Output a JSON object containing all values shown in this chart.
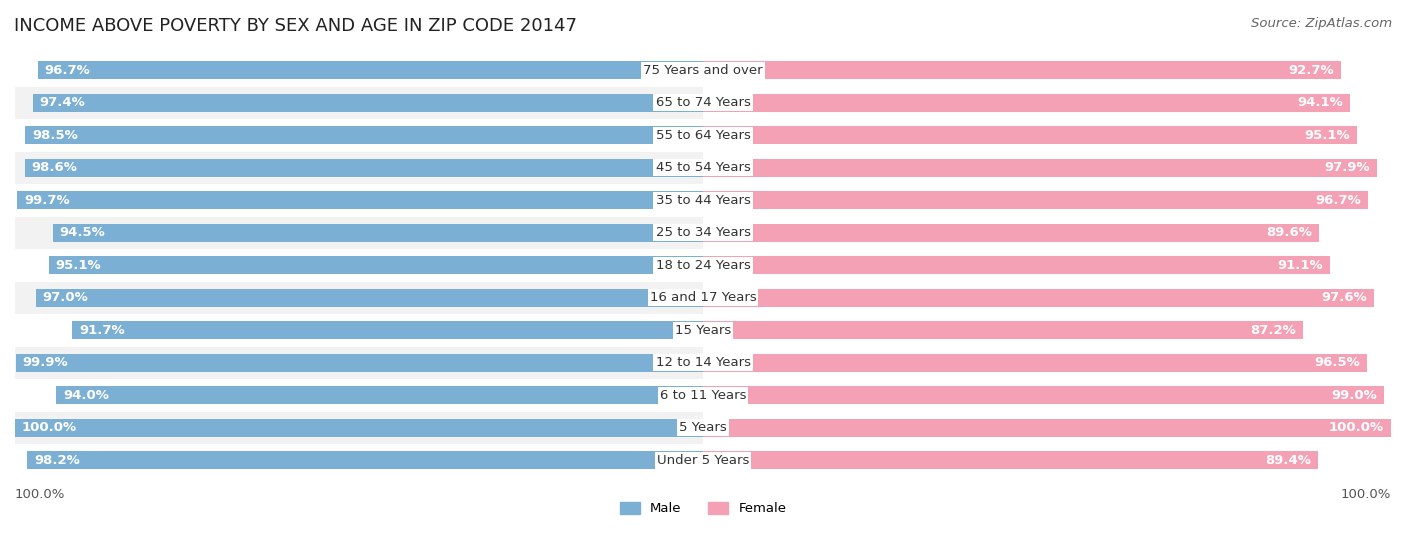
{
  "title": "INCOME ABOVE POVERTY BY SEX AND AGE IN ZIP CODE 20147",
  "source": "Source: ZipAtlas.com",
  "categories": [
    "Under 5 Years",
    "5 Years",
    "6 to 11 Years",
    "12 to 14 Years",
    "15 Years",
    "16 and 17 Years",
    "18 to 24 Years",
    "25 to 34 Years",
    "35 to 44 Years",
    "45 to 54 Years",
    "55 to 64 Years",
    "65 to 74 Years",
    "75 Years and over"
  ],
  "male_values": [
    98.2,
    100.0,
    94.0,
    99.9,
    91.7,
    97.0,
    95.1,
    94.5,
    99.7,
    98.6,
    98.5,
    97.4,
    96.7
  ],
  "female_values": [
    89.4,
    100.0,
    99.0,
    96.5,
    87.2,
    97.6,
    91.1,
    89.6,
    96.7,
    97.9,
    95.1,
    94.1,
    92.7
  ],
  "male_color": "#7bafd4",
  "female_color": "#f4a0b5",
  "male_light_color": "#c5ddf0",
  "female_light_color": "#fcd5e0",
  "bar_height": 0.55,
  "background_color": "#ffffff",
  "row_alt_color": "#f5f5f5",
  "x_min": 80,
  "x_max": 100,
  "legend_male": "Male",
  "legend_female": "Female",
  "axis_label_bottom": "100.0%",
  "title_fontsize": 13,
  "label_fontsize": 9.5,
  "category_fontsize": 9.5,
  "source_fontsize": 9.5
}
